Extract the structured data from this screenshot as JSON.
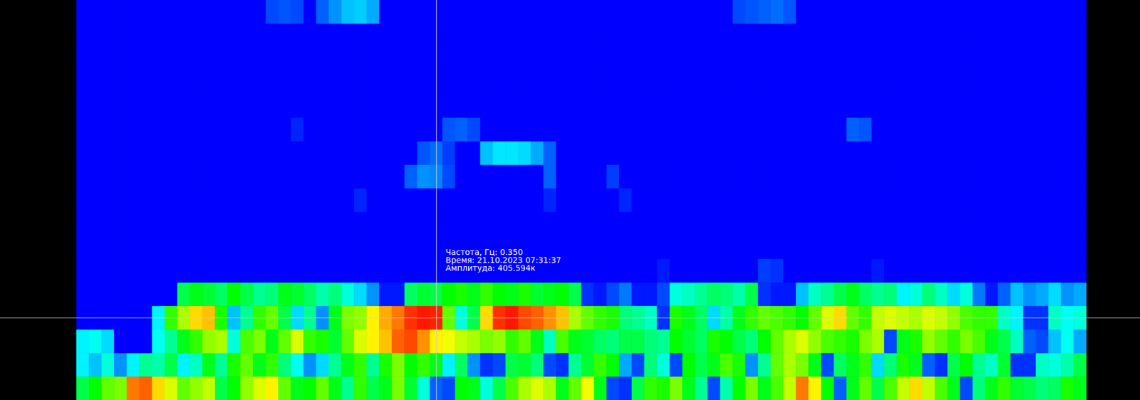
{
  "chart_data": {
    "type": "heatmap",
    "tick_labels": false,
    "y": [
      0.05,
      0.15,
      0.25,
      0.35,
      0.45,
      0.55,
      0.65,
      0.75,
      0.85,
      0.95,
      1.05,
      1.15,
      1.25,
      1.35,
      1.45,
      1.55,
      1.65
    ],
    "zlim": [
      0,
      420
    ],
    "colormap": [
      "#0000ff",
      "#00ffff",
      "#00ff00",
      "#ffff00",
      "#ff0000"
    ],
    "cursor": {
      "column": 28,
      "frequency": 0.35
    },
    "tooltip": [
      "Частота, Гц: 0.350",
      "Время: 21.10.2023 07:31:37",
      "Амплитуда: 405.594к"
    ],
    "z": [
      [
        180,
        210,
        250,
        260,
        370,
        380,
        330,
        300,
        250,
        270,
        290,
        180,
        210,
        270,
        300,
        320,
        250,
        200,
        210,
        250,
        200,
        150,
        230,
        180,
        200,
        260,
        190,
        120,
        40,
        30,
        210,
        200,
        120,
        180,
        240,
        280,
        300,
        280,
        200,
        250,
        310,
        200,
        30,
        20,
        180,
        230,
        220,
        260,
        200,
        150,
        30,
        140,
        210,
        260,
        200,
        240,
        290,
        370,
        320,
        210,
        40,
        200,
        250,
        180,
        240,
        290,
        330,
        290,
        240,
        200,
        30,
        160,
        200,
        230,
        190,
        180,
        160,
        170,
        220,
        200
      ],
      [
        100,
        80,
        120,
        60,
        100,
        150,
        140,
        180,
        100,
        130,
        200,
        150,
        220,
        250,
        200,
        230,
        160,
        110,
        60,
        90,
        150,
        200,
        230,
        150,
        220,
        260,
        210,
        230,
        200,
        100,
        170,
        60,
        20,
        30,
        180,
        190,
        160,
        30,
        20,
        150,
        190,
        230,
        210,
        70,
        30,
        160,
        120,
        30,
        210,
        180,
        200,
        240,
        220,
        60,
        150,
        250,
        280,
        260,
        200,
        30,
        170,
        200,
        230,
        90,
        160,
        220,
        200,
        40,
        20,
        180,
        210,
        150,
        130,
        190,
        20,
        20,
        130,
        120,
        140,
        180
      ],
      [
        100,
        110,
        90,
        0,
        0,
        0,
        110,
        150,
        200,
        230,
        270,
        280,
        120,
        240,
        260,
        200,
        250,
        300,
        230,
        220,
        190,
        250,
        300,
        320,
        340,
        380,
        390,
        360,
        320,
        310,
        290,
        280,
        260,
        270,
        230,
        250,
        200,
        130,
        240,
        200,
        190,
        170,
        160,
        180,
        180,
        160,
        150,
        210,
        190,
        170,
        220,
        210,
        180,
        160,
        210,
        250,
        280,
        300,
        270,
        240,
        230,
        220,
        260,
        280,
        30,
        200,
        220,
        270,
        250,
        230,
        260,
        240,
        200,
        180,
        130,
        40,
        30,
        80,
        110,
        70
      ],
      [
        0,
        0,
        0,
        0,
        0,
        0,
        100,
        230,
        280,
        330,
        340,
        220,
        80,
        150,
        230,
        250,
        180,
        90,
        150,
        60,
        200,
        260,
        270,
        320,
        350,
        370,
        400,
        410,
        405.594,
        250,
        120,
        180,
        330,
        400,
        410,
        390,
        380,
        360,
        340,
        280,
        250,
        230,
        220,
        160,
        150,
        130,
        20,
        220,
        200,
        170,
        90,
        140,
        200,
        230,
        250,
        240,
        230,
        210,
        250,
        300,
        330,
        250,
        230,
        290,
        300,
        290,
        280,
        300,
        290,
        270,
        240,
        230,
        230,
        130,
        100,
        20,
        20,
        130,
        110,
        120
      ],
      [
        0,
        0,
        0,
        0,
        0,
        0,
        0,
        0,
        180,
        200,
        190,
        170,
        210,
        180,
        150,
        160,
        200,
        190,
        170,
        140,
        160,
        120,
        90,
        60,
        10,
        10,
        170,
        190,
        180,
        210,
        220,
        200,
        230,
        210,
        200,
        220,
        190,
        200,
        210,
        180,
        20,
        10,
        30,
        50,
        10,
        10,
        30,
        120,
        130,
        150,
        170,
        160,
        140,
        180,
        20,
        10,
        10,
        80,
        130,
        150,
        180,
        200,
        170,
        150,
        160,
        100,
        120,
        160,
        130,
        90,
        120,
        50,
        10,
        40,
        80,
        60,
        70,
        90,
        60,
        70
      ],
      [
        0,
        0,
        0,
        0,
        0,
        0,
        0,
        0,
        0,
        0,
        0,
        0,
        0,
        0,
        0,
        0,
        0,
        0,
        0,
        0,
        0,
        0,
        0,
        0,
        0,
        0,
        0,
        0,
        0,
        0,
        0,
        0,
        0,
        0,
        0,
        0,
        0,
        0,
        0,
        0,
        0,
        0,
        0,
        0,
        0,
        0,
        10,
        0,
        0,
        0,
        0,
        0,
        0,
        0,
        25,
        20,
        0,
        0,
        0,
        0,
        0,
        0,
        0,
        10,
        0,
        0,
        0,
        0,
        0,
        0,
        0,
        0,
        0,
        0,
        0,
        0,
        0,
        0,
        0,
        0
      ],
      [
        0,
        0,
        0,
        0,
        0,
        0,
        0,
        0,
        0,
        0,
        0,
        0,
        0,
        0,
        0,
        0,
        0,
        0,
        0,
        0,
        0,
        0,
        0,
        0,
        0,
        0,
        0,
        0,
        0,
        0,
        0,
        0,
        0,
        0,
        0,
        0,
        0,
        0,
        0,
        0,
        0,
        0,
        0,
        0,
        0,
        0,
        0,
        0,
        0,
        0,
        0,
        0,
        0,
        0,
        0,
        0,
        0,
        0,
        0,
        0,
        0,
        0,
        0,
        0,
        0,
        0,
        0,
        0,
        0,
        0,
        0,
        0,
        0,
        0,
        0,
        0,
        0,
        0,
        0,
        0
      ],
      [
        0,
        0,
        0,
        0,
        0,
        0,
        0,
        0,
        0,
        0,
        0,
        0,
        0,
        0,
        0,
        0,
        0,
        0,
        0,
        0,
        0,
        0,
        0,
        0,
        0,
        0,
        0,
        0,
        0,
        0,
        0,
        0,
        0,
        0,
        0,
        0,
        0,
        0,
        0,
        0,
        0,
        0,
        0,
        0,
        0,
        0,
        0,
        0,
        0,
        0,
        0,
        0,
        0,
        0,
        0,
        0,
        0,
        0,
        0,
        0,
        0,
        0,
        0,
        0,
        0,
        0,
        0,
        0,
        0,
        0,
        0,
        0,
        0,
        0,
        0,
        0,
        0,
        0,
        0,
        0
      ],
      [
        0,
        0,
        0,
        0,
        0,
        0,
        0,
        0,
        0,
        0,
        0,
        0,
        0,
        0,
        0,
        0,
        0,
        0,
        0,
        0,
        0,
        0,
        15,
        0,
        0,
        0,
        0,
        0,
        0,
        0,
        0,
        0,
        0,
        0,
        0,
        0,
        0,
        15,
        0,
        0,
        0,
        0,
        0,
        15,
        0,
        0,
        0,
        0,
        0,
        0,
        0,
        0,
        0,
        0,
        0,
        0,
        0,
        0,
        0,
        0,
        0,
        0,
        0,
        0,
        0,
        0,
        0,
        0,
        0,
        0,
        0,
        0,
        0,
        0,
        0,
        0,
        0,
        0,
        0,
        0
      ],
      [
        0,
        0,
        0,
        0,
        0,
        0,
        0,
        0,
        0,
        0,
        0,
        0,
        0,
        0,
        0,
        0,
        0,
        0,
        0,
        0,
        0,
        0,
        0,
        0,
        0,
        0,
        40,
        60,
        55,
        30,
        0,
        0,
        0,
        0,
        0,
        0,
        0,
        40,
        0,
        0,
        0,
        0,
        25,
        0,
        0,
        0,
        0,
        0,
        0,
        0,
        0,
        0,
        0,
        0,
        0,
        0,
        0,
        0,
        0,
        0,
        0,
        0,
        0,
        0,
        0,
        0,
        0,
        0,
        0,
        0,
        0,
        0,
        0,
        0,
        0,
        0,
        0,
        0,
        0,
        0
      ],
      [
        0,
        0,
        0,
        0,
        0,
        0,
        0,
        0,
        0,
        0,
        0,
        0,
        0,
        0,
        0,
        0,
        0,
        0,
        0,
        0,
        0,
        0,
        0,
        0,
        0,
        0,
        0,
        35,
        45,
        25,
        0,
        0,
        80,
        95,
        95,
        90,
        70,
        40,
        0,
        0,
        0,
        0,
        0,
        0,
        0,
        0,
        0,
        0,
        0,
        0,
        0,
        0,
        0,
        0,
        0,
        0,
        0,
        0,
        0,
        0,
        0,
        0,
        0,
        0,
        0,
        0,
        0,
        0,
        0,
        0,
        0,
        0,
        0,
        0,
        0,
        0,
        0,
        0,
        0,
        0
      ],
      [
        0,
        0,
        0,
        0,
        0,
        0,
        0,
        0,
        0,
        0,
        0,
        0,
        0,
        0,
        0,
        0,
        0,
        15,
        0,
        0,
        0,
        0,
        0,
        0,
        0,
        0,
        0,
        0,
        0,
        35,
        40,
        30,
        0,
        0,
        0,
        0,
        0,
        0,
        0,
        0,
        0,
        0,
        0,
        0,
        0,
        0,
        0,
        0,
        0,
        0,
        0,
        0,
        0,
        0,
        0,
        0,
        0,
        0,
        0,
        0,
        0,
        40,
        35,
        0,
        0,
        0,
        0,
        0,
        0,
        0,
        0,
        0,
        0,
        0,
        0,
        0,
        0,
        0,
        0,
        0
      ],
      [
        0,
        0,
        0,
        0,
        0,
        0,
        0,
        0,
        0,
        0,
        0,
        0,
        0,
        0,
        0,
        0,
        0,
        0,
        0,
        0,
        0,
        0,
        0,
        0,
        0,
        0,
        0,
        0,
        0,
        0,
        0,
        0,
        0,
        0,
        0,
        0,
        0,
        0,
        0,
        0,
        0,
        0,
        0,
        0,
        0,
        0,
        0,
        0,
        0,
        0,
        0,
        0,
        0,
        0,
        0,
        0,
        0,
        0,
        0,
        0,
        0,
        0,
        0,
        0,
        0,
        0,
        0,
        0,
        0,
        0,
        0,
        0,
        0,
        0,
        0,
        0,
        0,
        0,
        0,
        0
      ],
      [
        0,
        0,
        0,
        0,
        0,
        0,
        0,
        0,
        0,
        0,
        0,
        0,
        0,
        0,
        0,
        0,
        0,
        0,
        0,
        0,
        0,
        0,
        0,
        0,
        0,
        0,
        0,
        0,
        0,
        0,
        0,
        0,
        0,
        0,
        0,
        0,
        0,
        0,
        0,
        0,
        0,
        0,
        0,
        0,
        0,
        0,
        0,
        0,
        0,
        0,
        0,
        0,
        0,
        0,
        0,
        0,
        0,
        0,
        0,
        0,
        0,
        0,
        0,
        0,
        0,
        0,
        0,
        0,
        0,
        0,
        0,
        0,
        0,
        0,
        0,
        0,
        0,
        0,
        0,
        0
      ],
      [
        0,
        0,
        0,
        0,
        0,
        0,
        0,
        0,
        0,
        0,
        0,
        0,
        0,
        0,
        0,
        0,
        0,
        0,
        0,
        0,
        0,
        0,
        0,
        0,
        0,
        0,
        0,
        0,
        0,
        0,
        0,
        0,
        0,
        0,
        0,
        0,
        0,
        0,
        0,
        0,
        0,
        0,
        0,
        0,
        0,
        0,
        0,
        0,
        0,
        0,
        0,
        0,
        0,
        0,
        0,
        0,
        0,
        0,
        0,
        0,
        0,
        0,
        0,
        0,
        0,
        0,
        0,
        0,
        0,
        0,
        0,
        0,
        0,
        0,
        0,
        0,
        0,
        0,
        0,
        0
      ],
      [
        0,
        0,
        0,
        0,
        0,
        0,
        0,
        0,
        0,
        0,
        0,
        0,
        0,
        0,
        0,
        0,
        0,
        0,
        0,
        0,
        0,
        0,
        0,
        0,
        0,
        0,
        0,
        0,
        0,
        0,
        0,
        0,
        0,
        0,
        0,
        0,
        0,
        0,
        0,
        0,
        0,
        0,
        0,
        0,
        0,
        0,
        0,
        0,
        0,
        0,
        0,
        0,
        0,
        0,
        0,
        0,
        0,
        0,
        0,
        0,
        0,
        0,
        0,
        0,
        0,
        0,
        0,
        0,
        0,
        0,
        0,
        0,
        0,
        0,
        0,
        0,
        0,
        0,
        0,
        0
      ],
      [
        0,
        0,
        0,
        0,
        0,
        0,
        0,
        0,
        0,
        0,
        0,
        0,
        0,
        0,
        0,
        30,
        35,
        30,
        0,
        40,
        60,
        80,
        85,
        70,
        0,
        0,
        0,
        0,
        0,
        0,
        0,
        0,
        0,
        0,
        0,
        0,
        0,
        0,
        0,
        0,
        0,
        0,
        0,
        0,
        0,
        0,
        0,
        0,
        0,
        0,
        0,
        0,
        30,
        35,
        40,
        45,
        35,
        0,
        0,
        0,
        0,
        0,
        0,
        0,
        0,
        0,
        0,
        0,
        0,
        0,
        0,
        0,
        0,
        0,
        0,
        0,
        0,
        0,
        0,
        0
      ]
    ]
  }
}
